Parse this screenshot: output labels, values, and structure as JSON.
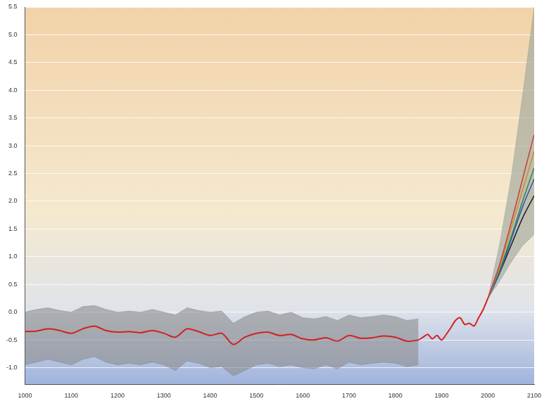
{
  "chart_data": {
    "type": "line",
    "xlim": [
      1000,
      2100
    ],
    "xticks": [
      1000,
      1100,
      1200,
      1300,
      1400,
      1500,
      1600,
      1700,
      1800,
      1900,
      2000,
      2100
    ],
    "ylim": [
      -1.3,
      5.5
    ],
    "yticks": [
      {
        "value": -1,
        "label": "-1.0"
      },
      -0.5,
      {
        "value": 0,
        "label": "0.0"
      },
      0.5,
      {
        "value": 1,
        "label": "1.0"
      },
      1.5,
      {
        "value": 2,
        "label": "2.0"
      },
      2.5,
      {
        "value": 3,
        "label": "3.0"
      },
      3.5,
      {
        "value": 4,
        "label": "4.0"
      },
      4.5,
      {
        "value": 5,
        "label": "5.0"
      },
      5.5
    ],
    "grid": true,
    "bands": [
      {
        "color": "#8c8c8c",
        "x": [
          1000,
          1025,
          1050,
          1075,
          1100,
          1125,
          1150,
          1175,
          1200,
          1225,
          1250,
          1275,
          1300,
          1325,
          1350,
          1375,
          1400,
          1425,
          1450,
          1475,
          1500,
          1525,
          1550,
          1575,
          1600,
          1625,
          1650,
          1675,
          1700,
          1725,
          1750,
          1775,
          1800,
          1825,
          1850
        ],
        "upper": [
          0.0,
          0.05,
          0.08,
          0.03,
          0.0,
          0.1,
          0.12,
          0.05,
          0.0,
          0.02,
          0.0,
          0.05,
          0.0,
          -0.05,
          0.08,
          0.03,
          0.0,
          0.02,
          -0.2,
          -0.08,
          0.0,
          0.02,
          -0.05,
          0.0,
          -0.1,
          -0.12,
          -0.08,
          -0.15,
          -0.05,
          -0.1,
          -0.08,
          -0.05,
          -0.08,
          -0.15,
          -0.12
        ],
        "lower": [
          -0.95,
          -0.9,
          -0.85,
          -0.9,
          -0.95,
          -0.85,
          -0.8,
          -0.9,
          -0.95,
          -0.92,
          -0.95,
          -0.9,
          -0.95,
          -1.05,
          -0.88,
          -0.92,
          -1.0,
          -0.98,
          -1.15,
          -1.05,
          -0.95,
          -0.92,
          -0.98,
          -0.95,
          -1.0,
          -1.02,
          -0.95,
          -1.02,
          -0.9,
          -0.95,
          -0.92,
          -0.9,
          -0.92,
          -0.98,
          -0.95
        ]
      },
      {
        "color": "#9aa49a",
        "x": [
          2000,
          2025,
          2050,
          2075,
          2100
        ],
        "upper": [
          0.25,
          1.2,
          2.4,
          3.9,
          5.5
        ],
        "lower": [
          0.25,
          0.55,
          0.9,
          1.2,
          1.4
        ]
      }
    ],
    "series": [
      {
        "color": "#d42020",
        "x": [
          1000,
          1025,
          1050,
          1075,
          1100,
          1125,
          1150,
          1175,
          1200,
          1225,
          1250,
          1275,
          1300,
          1325,
          1350,
          1375,
          1400,
          1425,
          1450,
          1475,
          1500,
          1525,
          1550,
          1575,
          1600,
          1625,
          1650,
          1675,
          1700,
          1725,
          1750,
          1775,
          1800,
          1825,
          1850,
          1860,
          1870,
          1880,
          1890,
          1900,
          1910,
          1920,
          1930,
          1940,
          1950,
          1960,
          1970,
          1980,
          1990,
          2000
        ],
        "values": [
          -0.35,
          -0.34,
          -0.3,
          -0.33,
          -0.38,
          -0.3,
          -0.25,
          -0.33,
          -0.36,
          -0.35,
          -0.37,
          -0.33,
          -0.38,
          -0.45,
          -0.3,
          -0.35,
          -0.42,
          -0.38,
          -0.58,
          -0.45,
          -0.38,
          -0.36,
          -0.42,
          -0.4,
          -0.48,
          -0.5,
          -0.46,
          -0.52,
          -0.42,
          -0.47,
          -0.46,
          -0.43,
          -0.45,
          -0.52,
          -0.5,
          -0.45,
          -0.4,
          -0.48,
          -0.42,
          -0.5,
          -0.4,
          -0.28,
          -0.15,
          -0.1,
          -0.22,
          -0.2,
          -0.25,
          -0.1,
          0.05,
          0.25
        ]
      },
      {
        "color": "#c83c3c",
        "x": [
          2000,
          2025,
          2050,
          2075,
          2100
        ],
        "values": [
          0.25,
          0.85,
          1.6,
          2.4,
          3.2
        ]
      },
      {
        "color": "#d08a30",
        "x": [
          2000,
          2025,
          2050,
          2075,
          2100
        ],
        "values": [
          0.25,
          0.8,
          1.5,
          2.2,
          2.9
        ]
      },
      {
        "color": "#2a8a4a",
        "x": [
          2000,
          2025,
          2050,
          2075,
          2100
        ],
        "values": [
          0.25,
          0.75,
          1.35,
          2.0,
          2.6
        ]
      },
      {
        "color": "#3050c0",
        "x": [
          2000,
          2025,
          2050,
          2075,
          2100
        ],
        "values": [
          0.25,
          0.7,
          1.3,
          1.9,
          2.4
        ]
      },
      {
        "color": "#202020",
        "x": [
          2000,
          2025,
          2050,
          2075,
          2100
        ],
        "values": [
          0.25,
          0.7,
          1.2,
          1.7,
          2.1
        ]
      }
    ]
  }
}
